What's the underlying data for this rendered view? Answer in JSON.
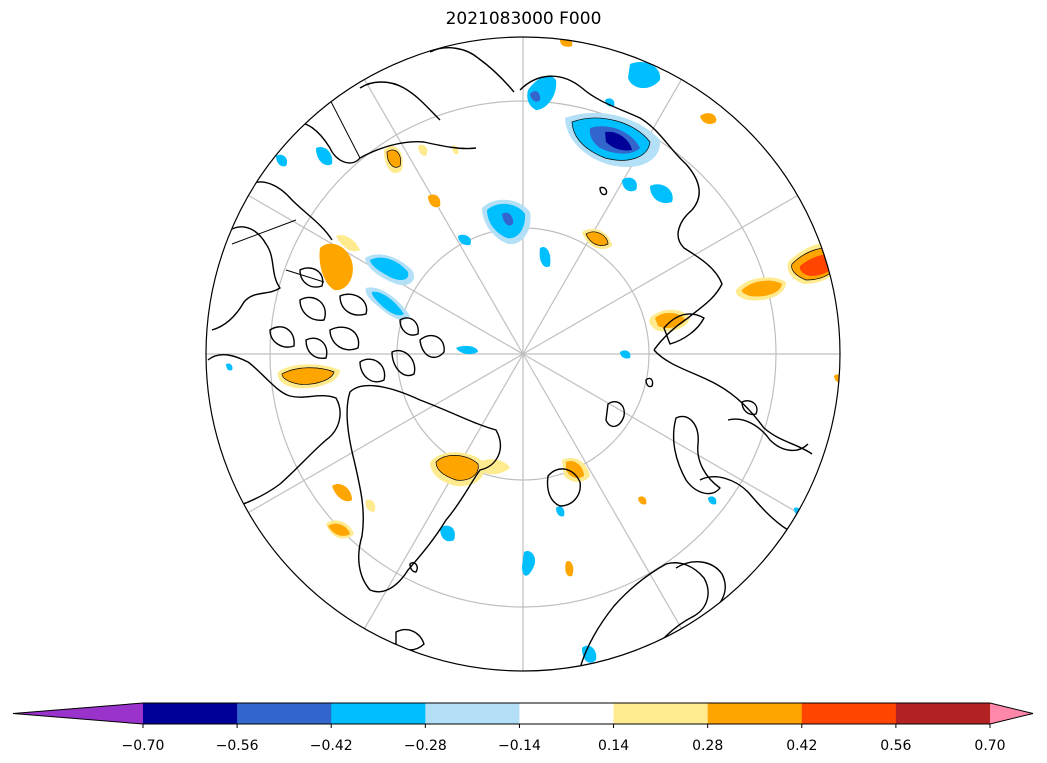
{
  "title": "2021083000 F000",
  "colorbar": {
    "levels": [
      -0.7,
      -0.56,
      -0.42,
      -0.28,
      -0.14,
      0.14,
      0.28,
      0.42,
      0.56,
      0.7
    ],
    "tick_labels": [
      "−0.70",
      "−0.56",
      "−0.42",
      "−0.28",
      "−0.14",
      "0.14",
      "0.28",
      "0.42",
      "0.56",
      "0.70"
    ],
    "under_color": "#9933cc",
    "over_color": "#ff88aa",
    "colors": [
      "#000099",
      "#3366cc",
      "#00bfff",
      "#b3e0f7",
      "#ffffff",
      "#ffeb8f",
      "#ffa500",
      "#ff4500",
      "#b22222"
    ],
    "extend": "both"
  },
  "map": {
    "projection": "north-polar-stereographic",
    "graticule_color": "#bfbfbf",
    "coast_color": "#000000"
  }
}
